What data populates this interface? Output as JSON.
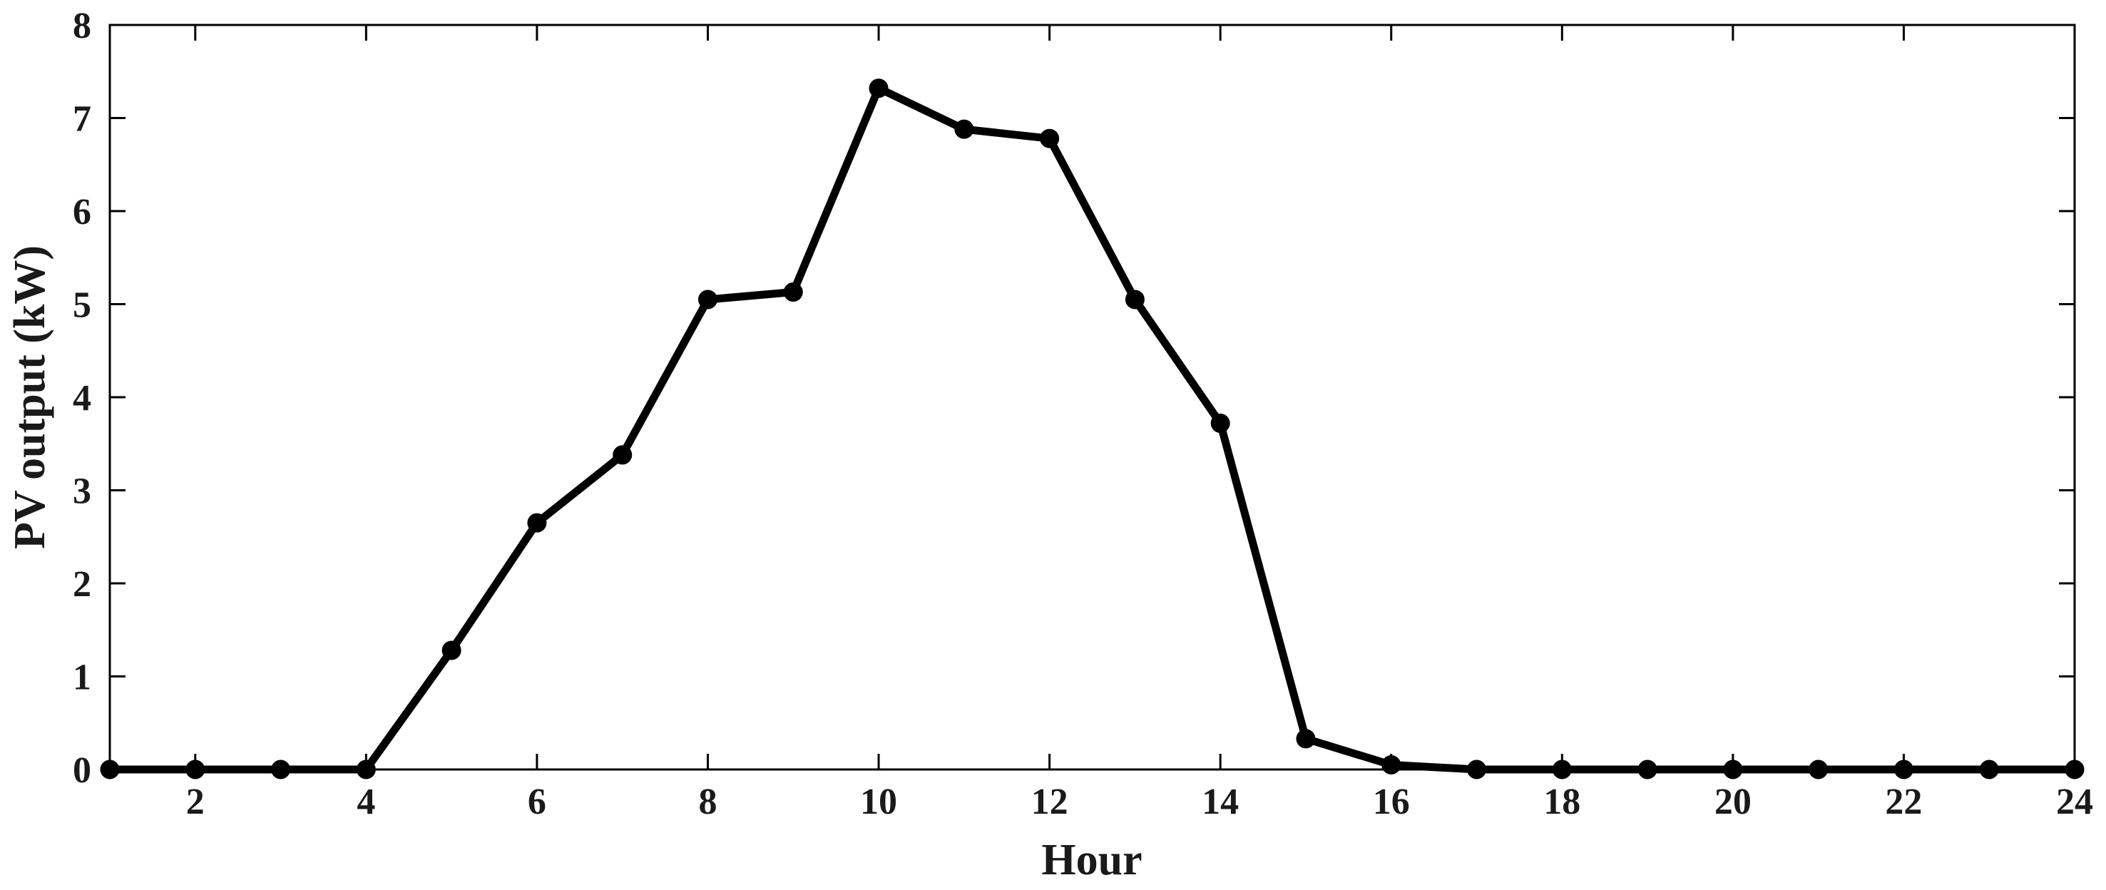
{
  "chart_data": {
    "type": "line",
    "title": "",
    "xlabel": "Hour",
    "ylabel": "PV output (kW)",
    "xlim": [
      1,
      24
    ],
    "ylim": [
      0,
      8
    ],
    "xticks": [
      2,
      4,
      6,
      8,
      10,
      12,
      14,
      16,
      18,
      20,
      22,
      24
    ],
    "yticks": [
      0,
      1,
      2,
      3,
      4,
      5,
      6,
      7,
      8
    ],
    "grid": false,
    "legend": "none",
    "line_color": "#000000",
    "marker": "circle",
    "series": [
      {
        "x": [
          1,
          2,
          3,
          4,
          5,
          6,
          7,
          8,
          9,
          10,
          11,
          12,
          13,
          14,
          15,
          16,
          17,
          18,
          19,
          20,
          21,
          22,
          23,
          24
        ],
        "values": [
          0,
          0,
          0,
          0,
          1.28,
          2.65,
          3.38,
          5.05,
          5.13,
          7.32,
          6.88,
          6.78,
          5.05,
          3.72,
          0.33,
          0.05,
          0,
          0,
          0,
          0,
          0,
          0,
          0,
          0
        ]
      }
    ]
  }
}
